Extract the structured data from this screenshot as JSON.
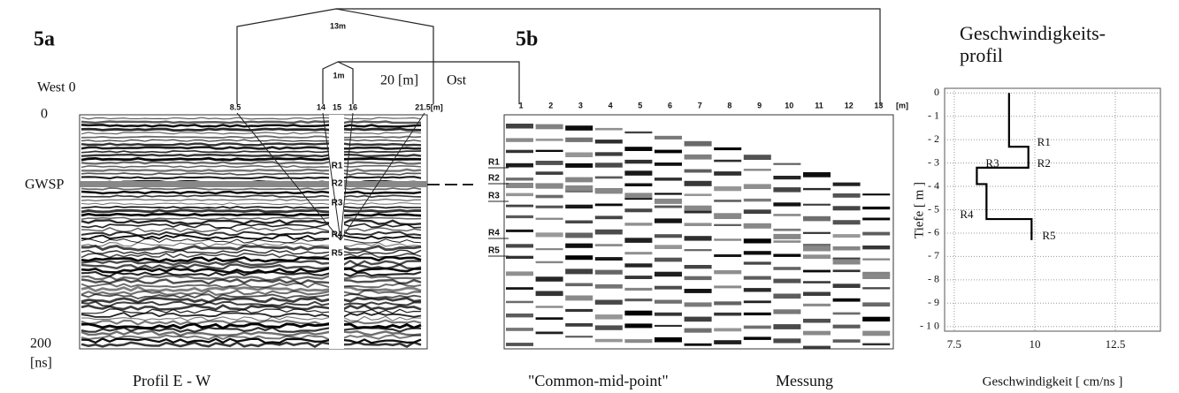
{
  "panel_a": {
    "label": "5a",
    "span_labels": [
      "13m",
      "1m"
    ],
    "distance": "20 [m]",
    "east": "Ost",
    "west": "West 0",
    "tick_labels": [
      "8.5",
      "14",
      "15",
      "16",
      "21.5[m]"
    ],
    "time_top": "0",
    "time_bottom": "200",
    "time_unit": "[ns]",
    "water_table": "GWSP",
    "reflectors": [
      "R1",
      "R2",
      "R3",
      "R4",
      "R5"
    ],
    "caption": "Profil E - W"
  },
  "panel_b": {
    "label": "5b",
    "positions": [
      "1",
      "2",
      "3",
      "4",
      "5",
      "6",
      "7",
      "8",
      "9",
      "10",
      "11",
      "12",
      "13"
    ],
    "unit": "[m]",
    "reflectors": [
      "R1",
      "R2",
      "R3",
      "R4",
      "R5"
    ],
    "caption": [
      "\"Common-mid-point\"",
      "Messung"
    ]
  },
  "chart_data": {
    "type": "line",
    "title": [
      "Geschwindigkeits-",
      "profil"
    ],
    "x": [
      9.2,
      9.2,
      9.8,
      9.8,
      8.2,
      8.2,
      8.5,
      8.5,
      9.9,
      9.9
    ],
    "values": [
      0,
      -2.3,
      -2.3,
      -3.2,
      -3.2,
      -3.9,
      -3.9,
      -5.4,
      -5.4,
      -6.3
    ],
    "color": "#000000",
    "annotations": [
      "R1",
      "R2",
      "R3",
      "R4",
      "R5"
    ],
    "xlim": [
      7.2,
      13.9
    ],
    "xticks": [
      7.5,
      10,
      12.5
    ],
    "ylim": [
      0.2,
      -10.2
    ],
    "yticks": [
      0,
      {
        "value": -1,
        "label": "- 1"
      },
      {
        "value": -2,
        "label": "- 2"
      },
      {
        "value": -3,
        "label": "- 3"
      },
      {
        "value": -4,
        "label": "- 4"
      },
      {
        "value": -5,
        "label": "- 5"
      },
      {
        "value": -6,
        "label": "- 6"
      },
      {
        "value": -7,
        "label": "- 7"
      },
      {
        "value": -8,
        "label": "- 8"
      },
      {
        "value": -9,
        "label": "- 9"
      },
      {
        "value": -10,
        "label": "- 1 0"
      }
    ],
    "grid": true,
    "xlabel": "Geschwindigkeit [ cm/ns ]",
    "ylabel": "Tiefe [ m ]"
  }
}
